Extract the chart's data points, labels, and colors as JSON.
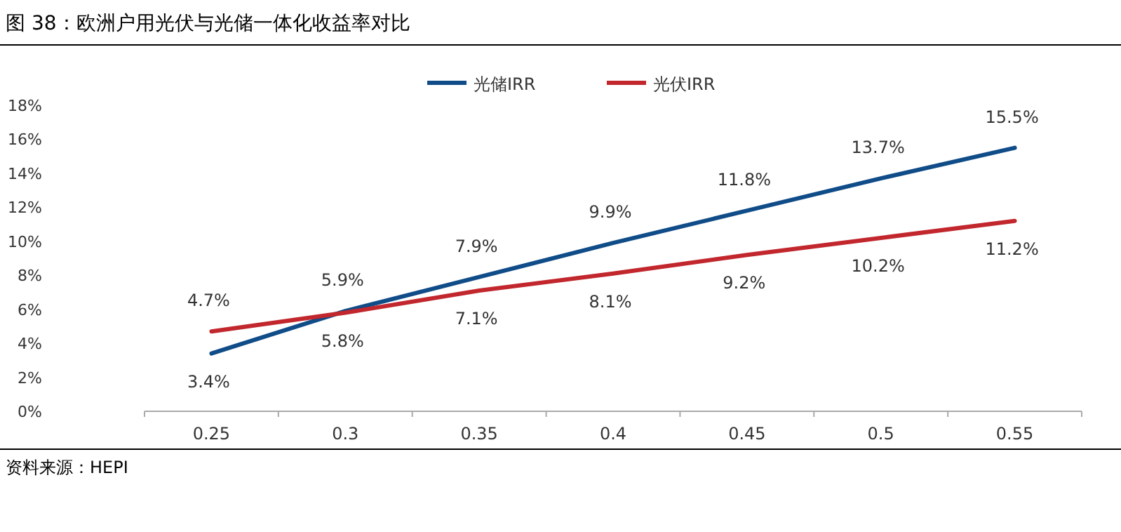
{
  "chart_data": {
    "type": "line",
    "title": "图 38：欧洲户用光伏与光储一体化收益率对比",
    "categories": [
      "0.25",
      "0.3",
      "0.35",
      "0.4",
      "0.45",
      "0.5",
      "0.55"
    ],
    "series": [
      {
        "name": "光储IRR",
        "color": "#0f4c88",
        "values": [
          3.4,
          5.9,
          7.9,
          9.9,
          11.8,
          13.7,
          15.5
        ],
        "value_labels": [
          "3.4%",
          "5.9%",
          "7.9%",
          "9.9%",
          "11.8%",
          "13.7%",
          "15.5%"
        ]
      },
      {
        "name": "光伏IRR",
        "color": "#c1272d",
        "values": [
          4.7,
          5.8,
          7.1,
          8.1,
          9.2,
          10.2,
          11.2
        ],
        "value_labels": [
          "4.7%",
          "5.8%",
          "7.1%",
          "8.1%",
          "9.2%",
          "10.2%",
          "11.2%"
        ]
      }
    ],
    "ylim": [
      0,
      18
    ],
    "yticks": [
      {
        "value": 0,
        "label": "0%"
      },
      {
        "value": 2,
        "label": "2%"
      },
      {
        "value": 4,
        "label": "4%"
      },
      {
        "value": 6,
        "label": "6%"
      },
      {
        "value": 8,
        "label": "8%"
      },
      {
        "value": 10,
        "label": "10%"
      },
      {
        "value": 12,
        "label": "12%"
      },
      {
        "value": 14,
        "label": "14%"
      },
      {
        "value": 16,
        "label": "16%"
      },
      {
        "value": 18,
        "label": "18%"
      }
    ],
    "legend": "top",
    "grid": false,
    "marker": "none",
    "line_style": "solid",
    "annotations": [
      "资料来源：HEPI"
    ]
  }
}
